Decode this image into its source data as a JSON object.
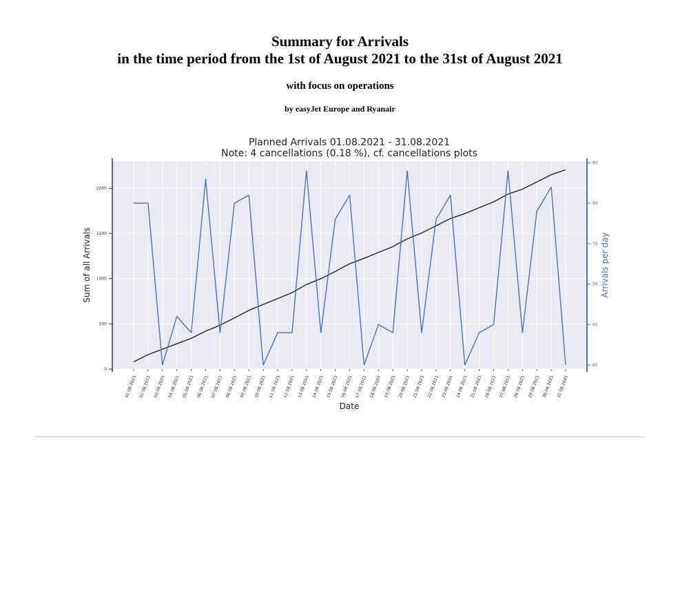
{
  "report": {
    "title_line1": "Summary for Arrivals",
    "title_line2": "in the time period from the 1st of August 2021 to the 31st of August 2021",
    "subtitle": "with focus on operations",
    "byline": "by easyJet Europe and Ryanair"
  },
  "chart_data": {
    "type": "line",
    "title": "Planned Arrivals 01.08.2021 - 31.08.2021",
    "subtitle": "Note: 4 cancellations (0.18 %), cf. cancellations plots",
    "xlabel": "Date",
    "ylabel_left": "Sum of all Arrivals",
    "ylabel_right": "Arrivals per day",
    "ylim_left": [
      0,
      2300
    ],
    "ylim_right": [
      59.5,
      85.2
    ],
    "yticks_left": [
      0,
      500,
      1000,
      1500,
      2000
    ],
    "yticks_right": [
      60,
      65,
      70,
      75,
      80,
      85
    ],
    "grid": true,
    "categories": [
      "01.08.2021",
      "02.08.2021",
      "03.08.2021",
      "04.08.2021",
      "05.08.2021",
      "06.08.2021",
      "07.08.2021",
      "08.08.2021",
      "09.08.2021",
      "10.08.2021",
      "11.08.2021",
      "12.08.2021",
      "13.08.2021",
      "14.08.2021",
      "15.08.2021",
      "16.08.2021",
      "17.08.2021",
      "18.08.2021",
      "19.08.2021",
      "20.08.2021",
      "21.08.2021",
      "22.08.2021",
      "23.08.2021",
      "24.08.2021",
      "25.08.2021",
      "26.08.2021",
      "27.08.2021",
      "28.08.2021",
      "29.08.2021",
      "30.08.2021",
      "31.08.2021"
    ],
    "series": [
      {
        "axis": "left",
        "color": "#222222",
        "values": [
          80,
          160,
          220,
          280,
          340,
          420,
          485,
          565,
          650,
          715,
          780,
          845,
          935,
          1000,
          1080,
          1165,
          1225,
          1290,
          1355,
          1440,
          1505,
          1585,
          1665,
          1720,
          1785,
          1850,
          1935,
          1990,
          2070,
          2150,
          2205
        ]
      },
      {
        "axis": "right",
        "color": "#4c72b0",
        "values": [
          80,
          80,
          60,
          66,
          64,
          83,
          64,
          80,
          81,
          60,
          64,
          64,
          84,
          64,
          78,
          81,
          60,
          65,
          64,
          84,
          64,
          78,
          81,
          60,
          64,
          65,
          84,
          64,
          79,
          82,
          60
        ]
      }
    ]
  }
}
